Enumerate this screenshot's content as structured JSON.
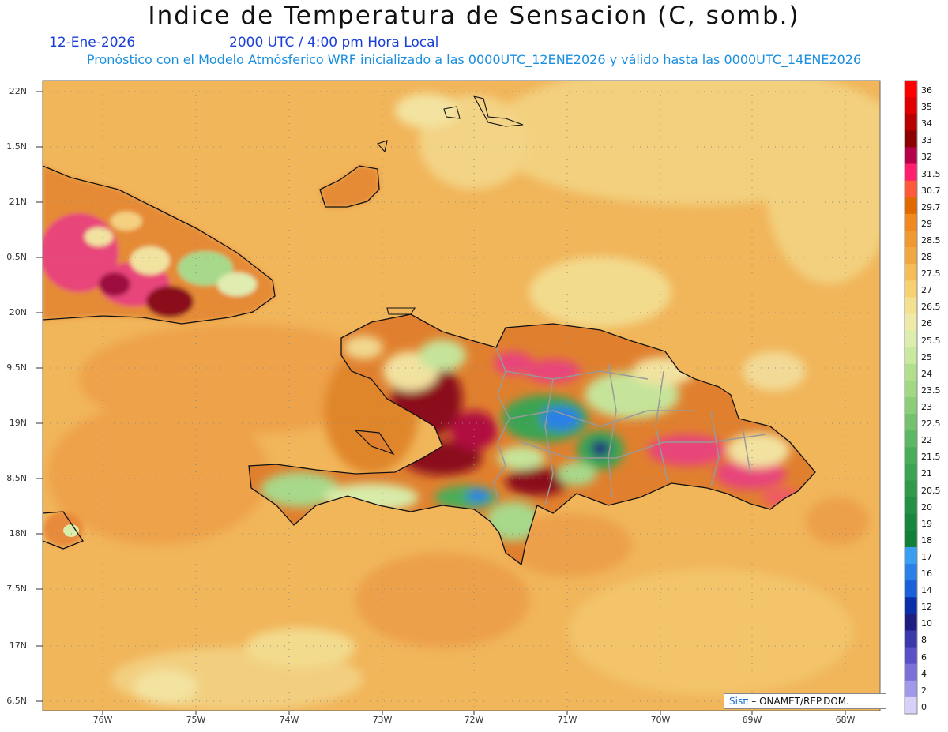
{
  "header": {
    "title": "Indice de Temperatura de Sensacion (C, somb.)",
    "date": "12-Ene-2026",
    "time": "2000 UTC / 4:00 pm Hora Local",
    "model_line": "Pronóstico con el Modelo Atmósferico WRF inicializado a las 0000UTC_12ENE2026 y válido hasta las  0000UTC_14ENE2026"
  },
  "axes": {
    "y_labels": [
      "22N",
      "1.5N",
      "21N",
      "0.5N",
      "20N",
      "9.5N",
      "19N",
      "8.5N",
      "18N",
      "7.5N",
      "17N",
      "6.5N"
    ],
    "x_labels": [
      "76W",
      "75W",
      "74W",
      "73W",
      "72W",
      "71W",
      "70W",
      "69W",
      "68W"
    ]
  },
  "colorbar": {
    "labels": [
      "36",
      "35",
      "34",
      "33",
      "32",
      "31.5",
      "30.7",
      "29.7",
      "29",
      "28.5",
      "28",
      "27.5",
      "27",
      "26.5",
      "26",
      "25.5",
      "25",
      "24",
      "23.5",
      "23",
      "22.5",
      "22",
      "21.5",
      "21",
      "20.5",
      "20",
      "19",
      "18",
      "17",
      "16",
      "14",
      "12",
      "10",
      "8",
      "6",
      "4",
      "2",
      "0"
    ],
    "colors": [
      "#ff0000",
      "#e00000",
      "#b80000",
      "#8c0000",
      "#b5004a",
      "#ff1f6e",
      "#ff5a3c",
      "#e06a00",
      "#f08a20",
      "#ee9a30",
      "#f2a840",
      "#f5bc58",
      "#f7d070",
      "#f3e090",
      "#efeaa8",
      "#dcedae",
      "#c9e8a0",
      "#b2df8e",
      "#a0d884",
      "#8ccd7a",
      "#74c26d",
      "#5cb864",
      "#4aad5a",
      "#3aa452",
      "#2e9a4a",
      "#229045",
      "#18873e",
      "#107f38",
      "#3a9ff0",
      "#2b7fe8",
      "#1a60d8",
      "#0a2fa8",
      "#1e1e80",
      "#3a3aaa",
      "#5a50c8",
      "#7a70d8",
      "#a098e8",
      "#d8d0f8"
    ]
  },
  "credit": {
    "brand": "Sis",
    "pi": "π",
    "org": " – ONAMET/REP.DOM."
  }
}
